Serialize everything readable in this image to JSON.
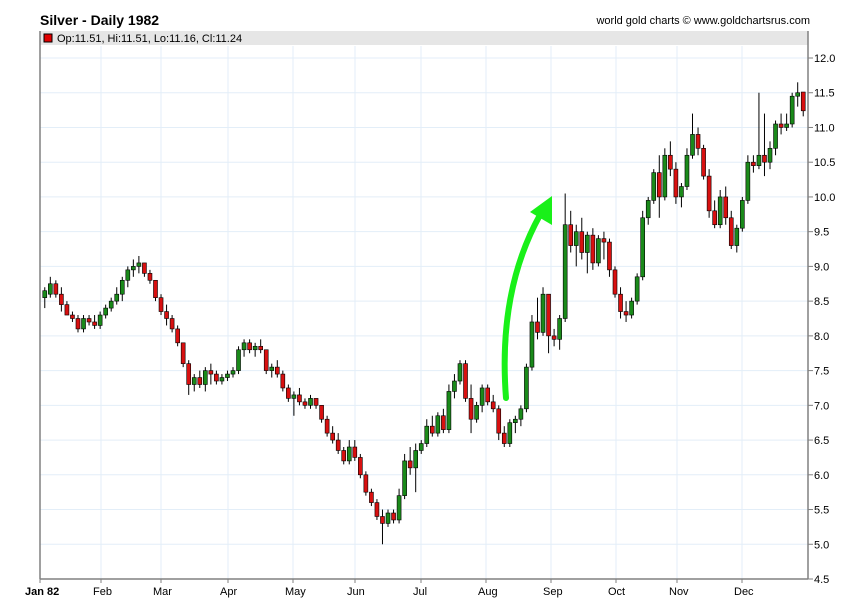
{
  "header": {
    "title": "Silver - Daily 1982",
    "credit": "world gold charts © www.goldchartsrus.com"
  },
  "legend": {
    "swatch_color": "#e00000",
    "text": "Op:11.51, Hi:11.51, Lo:11.16, Cl:11.24"
  },
  "colors": {
    "up": "#1a8a1a",
    "down": "#d81010",
    "wick": "#000000",
    "grid": "#e3eef8",
    "axis": "#808080",
    "legend_bg": "#e6e6e6",
    "arrow": "#19f019"
  },
  "chart_data": {
    "type": "candlestick",
    "title": "Silver - Daily 1982",
    "xlabel": "",
    "ylabel": "",
    "ylim": [
      4.5,
      12.0
    ],
    "y_ticks": [
      "12.0",
      "11.5",
      "11.0",
      "10.5",
      "10.0",
      "9.5",
      "9.0",
      "8.5",
      "8.0",
      "7.5",
      "7.0",
      "6.5",
      "6.0",
      "5.5",
      "5.0",
      "4.5"
    ],
    "x_ticks": [
      {
        "label": "Jan 82",
        "bold": true
      },
      {
        "label": "Feb"
      },
      {
        "label": "Mar"
      },
      {
        "label": "Apr"
      },
      {
        "label": "May"
      },
      {
        "label": "Jun"
      },
      {
        "label": "Jul"
      },
      {
        "label": "Aug"
      },
      {
        "label": "Sep"
      },
      {
        "label": "Oct"
      },
      {
        "label": "Nov"
      },
      {
        "label": "Dec"
      }
    ],
    "grid": true,
    "legend_position": "top-left",
    "annotation": "green curved arrow pointing up from early Aug (~7.0) to early Sep (~10.0)",
    "last_bar": {
      "open": 11.51,
      "high": 11.51,
      "low": 11.16,
      "close": 11.24
    },
    "series_approx_close_by_period": [
      {
        "period": "early Jan",
        "close": 8.6
      },
      {
        "period": "mid Jan",
        "close": 8.2
      },
      {
        "period": "early Feb",
        "close": 8.7
      },
      {
        "period": "mid Feb",
        "close": 9.0
      },
      {
        "period": "early Mar",
        "close": 8.2
      },
      {
        "period": "mid Mar",
        "close": 7.4
      },
      {
        "period": "early Apr",
        "close": 7.9
      },
      {
        "period": "mid Apr",
        "close": 7.5
      },
      {
        "period": "early May",
        "close": 7.3
      },
      {
        "period": "mid May",
        "close": 7.0
      },
      {
        "period": "early Jun",
        "close": 6.4
      },
      {
        "period": "mid Jun",
        "close": 5.8
      },
      {
        "period": "late Jun",
        "close": 5.3
      },
      {
        "period": "early Jul",
        "close": 6.5
      },
      {
        "period": "mid Jul",
        "close": 7.1
      },
      {
        "period": "late Jul",
        "close": 7.4
      },
      {
        "period": "early Aug",
        "close": 6.5
      },
      {
        "period": "mid Aug",
        "close": 7.6
      },
      {
        "period": "late Aug",
        "close": 8.2
      },
      {
        "period": "early Sep",
        "close": 9.5
      },
      {
        "period": "mid Sep",
        "close": 9.1
      },
      {
        "period": "early Oct",
        "close": 8.3
      },
      {
        "period": "mid Oct",
        "close": 9.8
      },
      {
        "period": "late Oct",
        "close": 10.5
      },
      {
        "period": "early Nov",
        "close": 10.8
      },
      {
        "period": "mid Nov",
        "close": 9.7
      },
      {
        "period": "late Nov",
        "close": 9.4
      },
      {
        "period": "early Dec",
        "close": 10.6
      },
      {
        "period": "mid Dec",
        "close": 10.6
      },
      {
        "period": "late Dec",
        "close": 11.24
      }
    ],
    "candles": [
      [
        8.55,
        8.7,
        8.4,
        8.65
      ],
      [
        8.6,
        8.85,
        8.55,
        8.75
      ],
      [
        8.75,
        8.8,
        8.55,
        8.6
      ],
      [
        8.6,
        8.7,
        8.35,
        8.45
      ],
      [
        8.45,
        8.5,
        8.3,
        8.3
      ],
      [
        8.3,
        8.35,
        8.2,
        8.25
      ],
      [
        8.25,
        8.3,
        8.05,
        8.1
      ],
      [
        8.1,
        8.3,
        8.05,
        8.25
      ],
      [
        8.25,
        8.3,
        8.15,
        8.2
      ],
      [
        8.2,
        8.3,
        8.1,
        8.15
      ],
      [
        8.15,
        8.35,
        8.1,
        8.3
      ],
      [
        8.3,
        8.45,
        8.25,
        8.4
      ],
      [
        8.4,
        8.55,
        8.35,
        8.5
      ],
      [
        8.5,
        8.7,
        8.45,
        8.6
      ],
      [
        8.6,
        8.85,
        8.5,
        8.8
      ],
      [
        8.8,
        9.0,
        8.7,
        8.95
      ],
      [
        8.95,
        9.1,
        8.85,
        9.0
      ],
      [
        9.0,
        9.15,
        8.9,
        9.05
      ],
      [
        9.05,
        9.05,
        8.85,
        8.9
      ],
      [
        8.9,
        8.95,
        8.75,
        8.8
      ],
      [
        8.8,
        8.8,
        8.5,
        8.55
      ],
      [
        8.55,
        8.6,
        8.3,
        8.35
      ],
      [
        8.35,
        8.45,
        8.15,
        8.25
      ],
      [
        8.25,
        8.3,
        8.05,
        8.1
      ],
      [
        8.1,
        8.15,
        7.85,
        7.9
      ],
      [
        7.9,
        7.9,
        7.55,
        7.6
      ],
      [
        7.6,
        7.65,
        7.15,
        7.3
      ],
      [
        7.3,
        7.45,
        7.2,
        7.4
      ],
      [
        7.4,
        7.5,
        7.25,
        7.3
      ],
      [
        7.3,
        7.55,
        7.2,
        7.5
      ],
      [
        7.5,
        7.6,
        7.3,
        7.45
      ],
      [
        7.45,
        7.5,
        7.3,
        7.35
      ],
      [
        7.35,
        7.45,
        7.3,
        7.4
      ],
      [
        7.4,
        7.5,
        7.35,
        7.45
      ],
      [
        7.45,
        7.55,
        7.4,
        7.5
      ],
      [
        7.5,
        7.85,
        7.45,
        7.8
      ],
      [
        7.8,
        7.95,
        7.7,
        7.9
      ],
      [
        7.9,
        7.95,
        7.75,
        7.8
      ],
      [
        7.8,
        7.9,
        7.7,
        7.85
      ],
      [
        7.85,
        7.95,
        7.75,
        7.8
      ],
      [
        7.8,
        7.8,
        7.45,
        7.5
      ],
      [
        7.5,
        7.6,
        7.4,
        7.55
      ],
      [
        7.55,
        7.65,
        7.4,
        7.45
      ],
      [
        7.45,
        7.5,
        7.2,
        7.25
      ],
      [
        7.25,
        7.3,
        7.05,
        7.1
      ],
      [
        7.1,
        7.2,
        6.85,
        7.15
      ],
      [
        7.15,
        7.25,
        7.0,
        7.05
      ],
      [
        7.05,
        7.1,
        6.95,
        7.0
      ],
      [
        7.0,
        7.15,
        6.95,
        7.1
      ],
      [
        7.1,
        7.1,
        6.95,
        7.0
      ],
      [
        7.0,
        7.0,
        6.75,
        6.8
      ],
      [
        6.8,
        6.85,
        6.55,
        6.6
      ],
      [
        6.6,
        6.7,
        6.45,
        6.5
      ],
      [
        6.5,
        6.6,
        6.3,
        6.35
      ],
      [
        6.35,
        6.4,
        6.15,
        6.2
      ],
      [
        6.2,
        6.5,
        6.15,
        6.4
      ],
      [
        6.4,
        6.5,
        6.2,
        6.25
      ],
      [
        6.25,
        6.3,
        5.95,
        6.0
      ],
      [
        6.0,
        6.05,
        5.7,
        5.75
      ],
      [
        5.75,
        5.8,
        5.55,
        5.6
      ],
      [
        5.6,
        5.65,
        5.35,
        5.4
      ],
      [
        5.4,
        5.5,
        5.0,
        5.3
      ],
      [
        5.3,
        5.5,
        5.25,
        5.45
      ],
      [
        5.45,
        5.5,
        5.3,
        5.35
      ],
      [
        5.35,
        5.8,
        5.3,
        5.7
      ],
      [
        5.7,
        6.3,
        5.65,
        6.2
      ],
      [
        6.2,
        6.4,
        6.0,
        6.1
      ],
      [
        6.1,
        6.45,
        5.75,
        6.35
      ],
      [
        6.35,
        6.5,
        6.3,
        6.45
      ],
      [
        6.45,
        6.8,
        6.4,
        6.7
      ],
      [
        6.7,
        6.85,
        6.55,
        6.6
      ],
      [
        6.6,
        6.9,
        6.55,
        6.85
      ],
      [
        6.85,
        6.95,
        6.6,
        6.65
      ],
      [
        6.65,
        7.3,
        6.6,
        7.2
      ],
      [
        7.2,
        7.45,
        7.1,
        7.35
      ],
      [
        7.35,
        7.65,
        7.3,
        7.6
      ],
      [
        7.6,
        7.65,
        7.05,
        7.1
      ],
      [
        7.1,
        7.3,
        6.6,
        6.8
      ],
      [
        6.8,
        7.05,
        6.75,
        7.0
      ],
      [
        7.0,
        7.3,
        6.9,
        7.25
      ],
      [
        7.25,
        7.3,
        7.0,
        7.05
      ],
      [
        7.05,
        7.15,
        6.9,
        6.95
      ],
      [
        6.95,
        7.0,
        6.5,
        6.6
      ],
      [
        6.6,
        6.7,
        6.4,
        6.45
      ],
      [
        6.45,
        6.8,
        6.4,
        6.75
      ],
      [
        6.75,
        6.85,
        6.6,
        6.8
      ],
      [
        6.8,
        7.0,
        6.7,
        6.95
      ],
      [
        6.95,
        7.6,
        6.9,
        7.55
      ],
      [
        7.55,
        8.3,
        7.5,
        8.2
      ],
      [
        8.2,
        8.55,
        7.95,
        8.05
      ],
      [
        8.05,
        8.7,
        8.0,
        8.6
      ],
      [
        8.6,
        8.6,
        7.75,
        8.0
      ],
      [
        8.0,
        8.1,
        7.85,
        7.95
      ],
      [
        7.95,
        8.3,
        7.8,
        8.25
      ],
      [
        8.25,
        10.05,
        8.2,
        9.6
      ],
      [
        9.6,
        9.8,
        9.2,
        9.3
      ],
      [
        9.3,
        9.6,
        9.0,
        9.5
      ],
      [
        9.5,
        9.7,
        9.1,
        9.2
      ],
      [
        9.2,
        9.5,
        8.9,
        9.45
      ],
      [
        9.45,
        9.55,
        8.95,
        9.05
      ],
      [
        9.05,
        9.45,
        9.0,
        9.4
      ],
      [
        9.4,
        9.5,
        9.1,
        9.35
      ],
      [
        9.35,
        9.4,
        8.85,
        8.95
      ],
      [
        8.95,
        9.0,
        8.55,
        8.6
      ],
      [
        8.6,
        8.7,
        8.25,
        8.35
      ],
      [
        8.35,
        8.5,
        8.2,
        8.3
      ],
      [
        8.3,
        8.55,
        8.25,
        8.5
      ],
      [
        8.5,
        8.9,
        8.45,
        8.85
      ],
      [
        8.85,
        9.8,
        8.8,
        9.7
      ],
      [
        9.7,
        10.0,
        9.6,
        9.95
      ],
      [
        9.95,
        10.4,
        9.9,
        10.35
      ],
      [
        10.35,
        10.6,
        9.7,
        10.0
      ],
      [
        10.0,
        10.7,
        9.95,
        10.6
      ],
      [
        10.6,
        10.8,
        10.3,
        10.4
      ],
      [
        10.4,
        10.5,
        9.9,
        10.0
      ],
      [
        10.0,
        10.2,
        9.85,
        10.15
      ],
      [
        10.15,
        10.7,
        10.1,
        10.6
      ],
      [
        10.6,
        11.2,
        10.55,
        10.9
      ],
      [
        10.9,
        11.0,
        10.6,
        10.7
      ],
      [
        10.7,
        10.75,
        10.25,
        10.3
      ],
      [
        10.3,
        10.4,
        9.7,
        9.8
      ],
      [
        9.8,
        9.95,
        9.55,
        9.6
      ],
      [
        9.6,
        10.1,
        9.55,
        10.0
      ],
      [
        10.0,
        10.15,
        9.6,
        9.7
      ],
      [
        9.7,
        9.8,
        9.25,
        9.3
      ],
      [
        9.3,
        9.6,
        9.2,
        9.55
      ],
      [
        9.55,
        10.0,
        9.5,
        9.95
      ],
      [
        9.95,
        10.6,
        9.9,
        10.5
      ],
      [
        10.5,
        10.6,
        10.35,
        10.45
      ],
      [
        10.45,
        11.5,
        10.4,
        10.6
      ],
      [
        10.6,
        11.2,
        10.3,
        10.5
      ],
      [
        10.5,
        10.8,
        10.4,
        10.7
      ],
      [
        10.7,
        11.1,
        10.6,
        11.05
      ],
      [
        11.05,
        11.2,
        10.9,
        11.0
      ],
      [
        11.0,
        11.2,
        10.95,
        11.05
      ],
      [
        11.05,
        11.5,
        11.0,
        11.45
      ],
      [
        11.45,
        11.65,
        11.3,
        11.5
      ],
      [
        11.51,
        11.51,
        11.16,
        11.24
      ]
    ]
  }
}
